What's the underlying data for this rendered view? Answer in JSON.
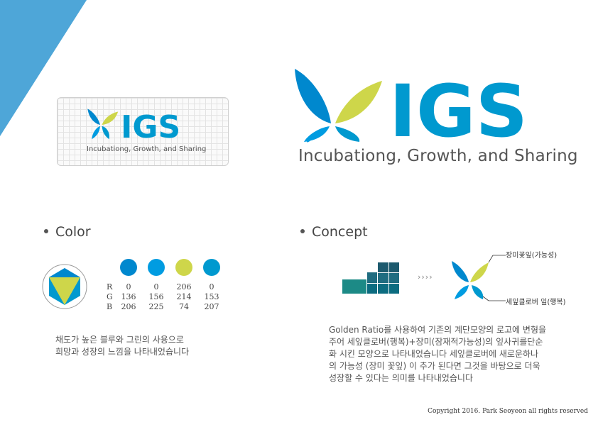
{
  "brand": {
    "name": "IGS",
    "tagline": "Incubationg, Growth, and Sharing",
    "colors": {
      "dark_blue": "#0088CE",
      "light_blue": "#009CE1",
      "green": "#CED64A",
      "mid_blue": "#0099CF"
    }
  },
  "color_section": {
    "title": "Color",
    "swatches": [
      {
        "color": "#0088CE",
        "r": "0",
        "g": "136",
        "b": "206"
      },
      {
        "color": "#009CE1",
        "r": "0",
        "g": "156",
        "b": "225"
      },
      {
        "color": "#CED64A",
        "r": "206",
        "g": "214",
        "b": "74"
      },
      {
        "color": "#0099CF",
        "r": "0",
        "g": "153",
        "b": "207"
      }
    ],
    "labels": {
      "r": "R",
      "g": "G",
      "b": "B"
    },
    "description": [
      "채도가 높은 블루와 그린의 사용으로",
      "희망과 성장의 느낌을 나타내었습니다"
    ]
  },
  "concept_section": {
    "title": "Concept",
    "arrows": "››››",
    "top_note": "장미꽃잎(가능성)",
    "bottom_note": "세잎클로버 잎(행복)",
    "description": [
      "Golden Ratio를 사용하여 기존의 계단모양의 로고에 변형을",
      "주어 세잎클로버(행복)+장미(잠재적가능성)의 잎사귀를단순",
      "화 시킨 모양으로 나타내었습니다 세잎클로버에 새로운하나",
      "의 가능성 (장미 꽃잎) 이 추가 된다면 그것을 바탕으로 더욱",
      "성장할 수 있다는 의미를 나타내었습니다"
    ]
  },
  "copyright": "Copyright 2016. Park Seoyeon all rights reserved"
}
